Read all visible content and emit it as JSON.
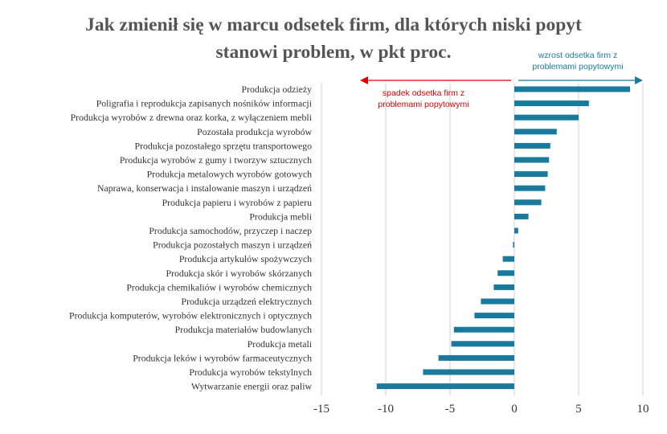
{
  "title_line1": "Jak zmienił się w marcu odsetek firm, dla których niski popyt",
  "title_line2": "stanowi problem, w pkt proc.",
  "annotations": {
    "increase_line1": "wzrost odsetka firm z",
    "increase_line2": "problemami popytowymi",
    "decrease_line1": "spadek odsetka firm z",
    "decrease_line2": "problemami popytowymi"
  },
  "colors": {
    "bar": "#1a7a9c",
    "title": "#555555",
    "label": "#333333",
    "increase": "#1a7a9c",
    "decrease": "#e00000",
    "grid": "#c8d2dc"
  },
  "chart_data": {
    "type": "bar",
    "orientation": "horizontal",
    "title": "Jak zmienił się w marcu odsetek firm, dla których niski popyt stanowi problem, w pkt proc.",
    "xlim": [
      -15,
      10
    ],
    "xticks": [
      "-15",
      "-10",
      "-5",
      "0",
      "5",
      "10"
    ],
    "xtick_values": [
      -15,
      -10,
      -5,
      0,
      5,
      10
    ],
    "grid": true,
    "categories": [
      "Produkcja odzieży",
      "Poligrafia i reprodukcja zapisanych nośników informacji",
      "Produkcja wyrobów z drewna oraz korka, z wyłączeniem mebli",
      "Pozostała produkcja wyrobów",
      "Produkcja pozostałego sprzętu transportowego",
      "Produkcja wyrobów z gumy i tworzyw sztucznych",
      "Produkcja metalowych wyrobów gotowych",
      "Naprawa, konserwacja i instalowanie maszyn i urządzeń",
      "Produkcja papieru i wyrobów z papieru",
      "Produkcja mebli",
      "Produkcja samochodów, przyczep i naczep",
      "Produkcja pozostałych maszyn i urządzeń",
      "Produkcja artykułów spożywczych",
      "Produkcja skór i wyrobów skórzanych",
      "Produkcja chemikaliów i wyrobów chemicznych",
      "Produkcja urządzeń elektrycznych",
      "Produkcja komputerów, wyrobów elektronicznych i optycznych",
      "Produkcja materiałów budowlanych",
      "Produkcja metali",
      "Produkcja leków i wyrobów farmaceutycznych",
      "Produkcja wyrobów tekstylnych",
      "Wytwarzanie energii oraz paliw"
    ],
    "values": [
      9.0,
      5.8,
      5.0,
      3.3,
      2.8,
      2.7,
      2.6,
      2.4,
      2.1,
      1.1,
      0.3,
      -0.1,
      -0.9,
      -1.3,
      -1.6,
      -2.6,
      -3.1,
      -4.7,
      -4.9,
      -5.9,
      -7.1,
      -10.7
    ]
  }
}
